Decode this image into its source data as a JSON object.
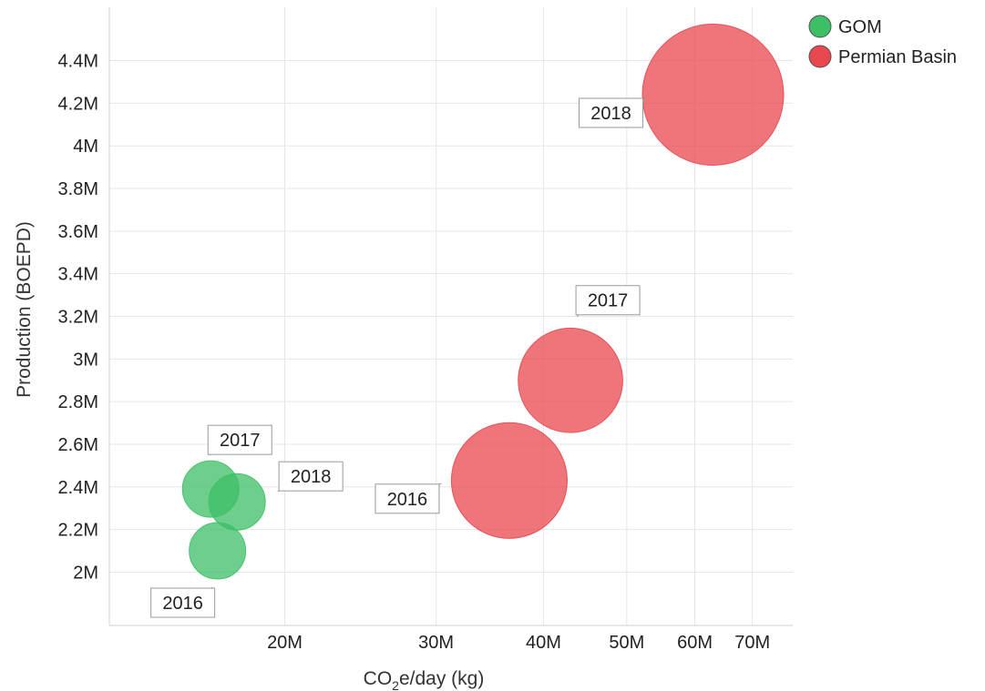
{
  "chart_data": {
    "type": "scatter",
    "subtype": "bubble",
    "xlabel_main": "CO",
    "xlabel_sub": "2",
    "xlabel_rest": "e/day (kg)",
    "ylabel": "Production (BOEPD)",
    "x_scale": "log",
    "xlim": [
      12500000,
      78000000
    ],
    "ylim": [
      1750000,
      4650000
    ],
    "grid": true,
    "legend_position": "top-right",
    "x_ticks": [
      {
        "value": 20000000,
        "label": "20M"
      },
      {
        "value": 30000000,
        "label": "30M"
      },
      {
        "value": 40000000,
        "label": "40M"
      },
      {
        "value": 50000000,
        "label": "50M"
      },
      {
        "value": 60000000,
        "label": "60M"
      },
      {
        "value": 70000000,
        "label": "70M"
      }
    ],
    "y_ticks": [
      {
        "value": 2000000,
        "label": "2M"
      },
      {
        "value": 2200000,
        "label": "2.2M"
      },
      {
        "value": 2400000,
        "label": "2.4M"
      },
      {
        "value": 2600000,
        "label": "2.6M"
      },
      {
        "value": 2800000,
        "label": "2.8M"
      },
      {
        "value": 3000000,
        "label": "3M"
      },
      {
        "value": 3200000,
        "label": "3.2M"
      },
      {
        "value": 3400000,
        "label": "3.4M"
      },
      {
        "value": 3600000,
        "label": "3.6M"
      },
      {
        "value": 3800000,
        "label": "3.8M"
      },
      {
        "value": 4000000,
        "label": "4M"
      },
      {
        "value": 4200000,
        "label": "4.2M"
      },
      {
        "value": 4400000,
        "label": "4.4M"
      }
    ],
    "series": [
      {
        "name": "GOM",
        "color": "#3dbf65",
        "points": [
          {
            "label": "2016",
            "x": 16700000,
            "y": 2100000,
            "size": 1.0
          },
          {
            "label": "2017",
            "x": 16400000,
            "y": 2390000,
            "size": 1.0
          },
          {
            "label": "2018",
            "x": 17600000,
            "y": 2330000,
            "size": 1.0
          }
        ]
      },
      {
        "name": "Permian Basin",
        "color": "#e8474e",
        "points": [
          {
            "label": "2016",
            "x": 36500000,
            "y": 2430000,
            "size": 2.05
          },
          {
            "label": "2017",
            "x": 43000000,
            "y": 2900000,
            "size": 1.85
          },
          {
            "label": "2018",
            "x": 63000000,
            "y": 4240000,
            "size": 2.5
          }
        ]
      }
    ]
  }
}
